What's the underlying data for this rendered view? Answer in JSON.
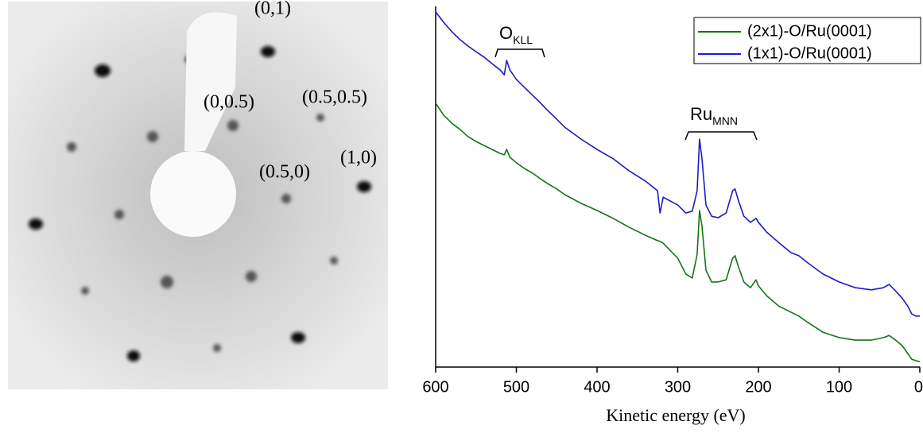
{
  "image": {
    "labels": [
      "(0,1)",
      "(0,0.5)",
      "(0.5,0.5)",
      "(1,0)",
      "(0.5,0)"
    ]
  },
  "chart_data": {
    "type": "line",
    "xlabel": "Kinetic energy (eV)",
    "annotations": [
      {
        "text": "O",
        "sub": "KLL"
      },
      {
        "text": "Ru",
        "sub": "MNN"
      }
    ],
    "x": [
      600,
      590,
      580,
      570,
      560,
      550,
      540,
      530,
      520,
      515,
      512,
      508,
      500,
      490,
      480,
      470,
      460,
      450,
      440,
      420,
      400,
      380,
      360,
      340,
      325,
      322,
      318,
      300,
      290,
      282,
      276,
      273,
      270,
      265,
      258,
      250,
      240,
      232,
      229,
      225,
      218,
      210,
      203,
      200,
      190,
      175,
      160,
      150,
      140,
      120,
      100,
      80,
      60,
      45,
      38,
      30,
      22,
      15,
      10,
      5,
      0
    ],
    "series": [
      {
        "name": "(2x1)-O/Ru(0001)",
        "color": "#117711",
        "values": [
          73.5,
          70.1,
          67.9,
          66.2,
          64.2,
          62.8,
          61.7,
          60.6,
          59.5,
          59.1,
          60.6,
          58.4,
          56.9,
          55.3,
          54.0,
          52.4,
          50.9,
          49.6,
          48.0,
          45.6,
          43.6,
          41.4,
          38.9,
          36.7,
          35.2,
          35.0,
          34.5,
          30.3,
          25.9,
          24.8,
          31.4,
          43.6,
          39.2,
          27.0,
          23.7,
          23.7,
          24.3,
          30.3,
          31.0,
          28.1,
          23.7,
          22.1,
          24.3,
          22.6,
          19.9,
          17.0,
          15.3,
          14.2,
          12.6,
          9.7,
          8.2,
          7.5,
          7.5,
          8.2,
          8.8,
          7.5,
          6.0,
          3.8,
          2.2,
          1.8,
          1.5
        ]
      },
      {
        "name": "(1x1)-O/Ru(0001)",
        "color": "#1a1acc",
        "values": [
          98.9,
          96.0,
          93.4,
          91.2,
          89.4,
          87.8,
          86.3,
          84.5,
          82.7,
          81.4,
          85.4,
          82.7,
          80.1,
          77.9,
          75.7,
          73.5,
          71.2,
          69.0,
          66.8,
          63.5,
          60.6,
          58.0,
          54.6,
          51.8,
          49.1,
          42.9,
          47.3,
          45.1,
          42.9,
          43.4,
          49.1,
          63.5,
          58.0,
          45.1,
          42.0,
          41.6,
          42.9,
          49.1,
          49.6,
          46.5,
          42.0,
          40.3,
          41.4,
          40.3,
          37.6,
          34.7,
          31.9,
          31.0,
          29.2,
          25.9,
          23.7,
          22.1,
          21.5,
          22.1,
          23.0,
          21.2,
          19.2,
          17.0,
          14.8,
          14.2,
          14.2
        ]
      }
    ],
    "xlim": [
      600,
      0
    ],
    "xticks": [
      600,
      500,
      400,
      300,
      200,
      100,
      0
    ],
    "ylim": [
      0,
      100
    ],
    "legend": "upper right"
  }
}
